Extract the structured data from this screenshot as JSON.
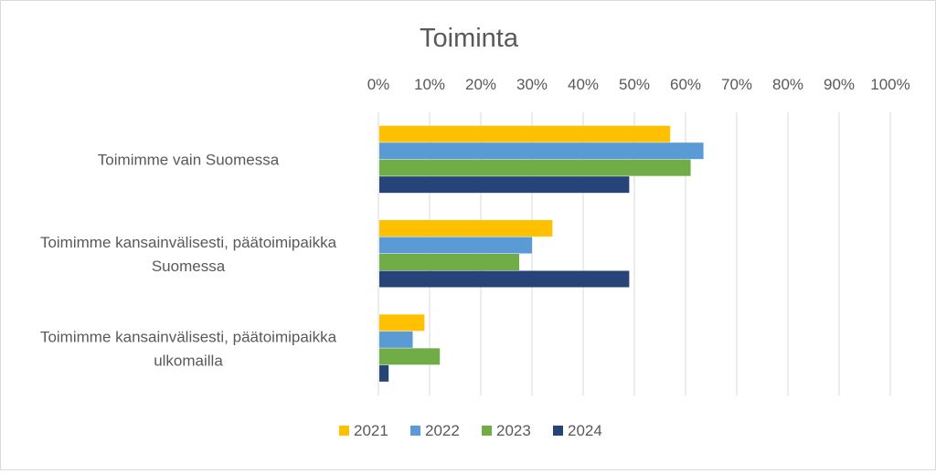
{
  "chart_data": {
    "type": "bar",
    "orientation": "horizontal",
    "title": "Toiminta",
    "categories": [
      [
        "Toimimme vain Suomessa"
      ],
      [
        "Toimimme kansainvälisesti, päätoimipaikka",
        "Suomessa"
      ],
      [
        "Toimimme kansainvälisesti, päätoimipaikka",
        "ulkomailla"
      ]
    ],
    "x_ticks": [
      "0%",
      "10%",
      "20%",
      "30%",
      "40%",
      "50%",
      "60%",
      "70%",
      "80%",
      "90%",
      "100%"
    ],
    "xlim": [
      0,
      100
    ],
    "x_axis_position": "top",
    "grid": true,
    "legend_position": "bottom",
    "series": [
      {
        "name": "2021",
        "color": "#FFC000",
        "values": [
          57,
          34,
          9
        ]
      },
      {
        "name": "2022",
        "color": "#5B9BD5",
        "values": [
          63.5,
          30,
          6.7
        ]
      },
      {
        "name": "2023",
        "color": "#70AD47",
        "values": [
          61,
          27.5,
          12
        ]
      },
      {
        "name": "2024",
        "color": "#264478",
        "values": [
          49,
          49,
          2
        ]
      }
    ]
  }
}
